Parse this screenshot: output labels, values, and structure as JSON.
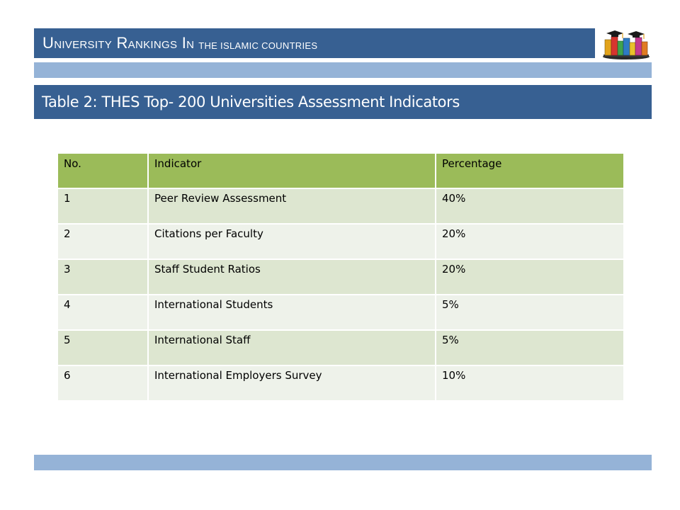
{
  "header": {
    "title_main": "University Rankings In",
    "title_sub": "the Islamic Countries"
  },
  "logo": {
    "icon": "books-graduation-cap-icon"
  },
  "table_title": "Table 2: THES Top- 200 Universities Assessment Indicators",
  "table": {
    "columns": [
      "No.",
      "Indicator",
      "Percentage"
    ],
    "rows": [
      [
        "1",
        "Peer Review Assessment",
        "40%"
      ],
      [
        "2",
        "Citations per Faculty",
        "20%"
      ],
      [
        "3",
        "Staff Student Ratios",
        "20%"
      ],
      [
        "4",
        "International Students",
        "5%"
      ],
      [
        "5",
        "International Staff",
        "5%"
      ],
      [
        "6",
        "International Employers Survey",
        "10%"
      ]
    ]
  },
  "colors": {
    "header_bg": "#376092",
    "band": "#95b3d7",
    "table_header": "#9bbb59",
    "row_odd": "#dde6d0",
    "row_even": "#eef2ea"
  }
}
